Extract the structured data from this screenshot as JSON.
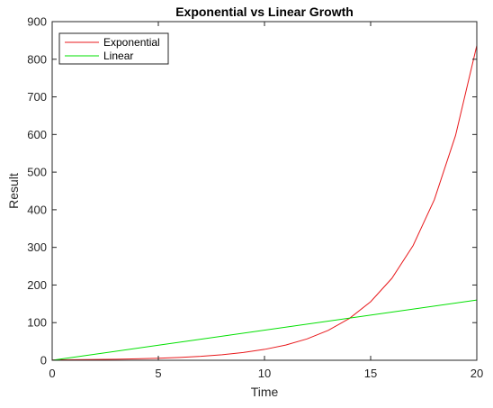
{
  "chart_data": {
    "type": "line",
    "title": "Exponential vs Linear Growth",
    "xlabel": "Time",
    "ylabel": "Result",
    "xlim": [
      0,
      20
    ],
    "ylim": [
      0,
      900
    ],
    "xticks": [
      0,
      5,
      10,
      15,
      20
    ],
    "yticks": [
      0,
      100,
      200,
      300,
      400,
      500,
      600,
      700,
      800,
      900
    ],
    "grid": false,
    "legend_position": "top-left",
    "series": [
      {
        "name": "Exponential",
        "color": "#e8191c",
        "x": [
          0,
          1,
          2,
          3,
          4,
          5,
          6,
          7,
          8,
          9,
          10,
          11,
          12,
          13,
          14,
          15,
          16,
          17,
          18,
          19,
          20
        ],
        "y": [
          1,
          1.4,
          2,
          2.7,
          3.8,
          5.4,
          7.5,
          10.5,
          14.8,
          20.7,
          28.9,
          40.5,
          56.7,
          79.4,
          111.1,
          155.6,
          217.8,
          304.9,
          426.9,
          597.6,
          836.7
        ]
      },
      {
        "name": "Linear",
        "color": "#00e000",
        "x": [
          0,
          20
        ],
        "y": [
          0,
          160
        ]
      }
    ]
  }
}
